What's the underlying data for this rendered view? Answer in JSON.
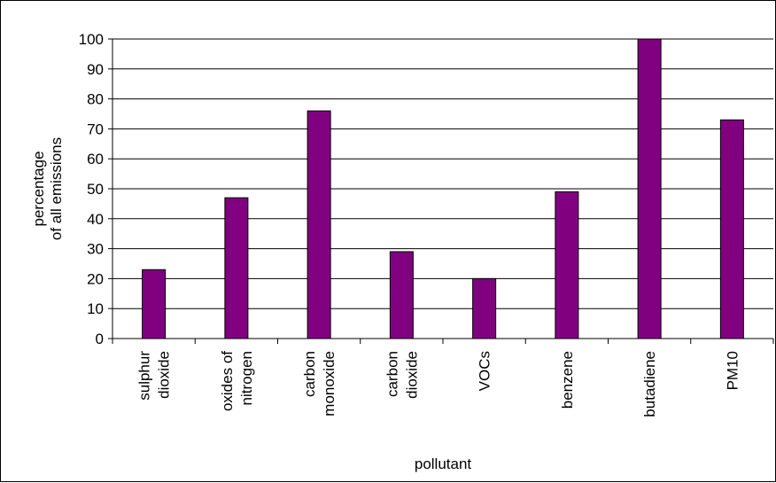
{
  "chart_data": {
    "type": "bar",
    "title": "",
    "xlabel": "pollutant",
    "ylabel": [
      "percentage",
      "of all emissions"
    ],
    "ylim": [
      0,
      100
    ],
    "yticks": [
      0,
      10,
      20,
      30,
      40,
      50,
      60,
      70,
      80,
      90,
      100
    ],
    "grid": "horizontal",
    "legend": "none",
    "categories": [
      [
        "sulphur",
        "dioxide"
      ],
      [
        "oxides of",
        "nitrogen"
      ],
      [
        "carbon",
        "monoxide"
      ],
      [
        "carbon",
        "dioxide"
      ],
      [
        "VOCs"
      ],
      [
        "benzene"
      ],
      [
        "butadiene"
      ],
      [
        "PM10"
      ]
    ],
    "values": [
      23,
      47,
      76,
      29,
      20,
      49,
      100,
      73
    ],
    "bar_color": "#800080"
  }
}
